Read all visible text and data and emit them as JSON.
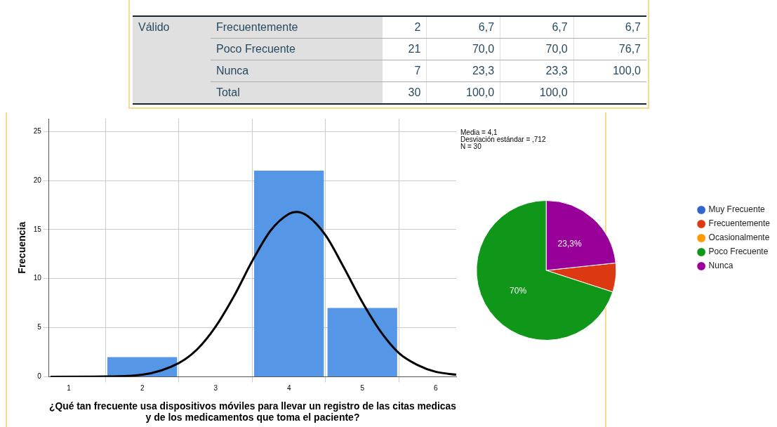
{
  "chart_data": [
    {
      "type": "other",
      "annotations": [
        "Válido"
      ],
      "categories": [
        "Frecuentemente",
        "Poco Frecuente",
        "Nunca",
        "Total"
      ],
      "series": [
        {
          "values": [
            2,
            21,
            7,
            30
          ],
          "value_labels": [
            "2",
            "21",
            "7",
            "30"
          ]
        },
        {
          "values": [
            6.7,
            70,
            23.3,
            100
          ],
          "value_labels": [
            "6,7",
            "70,0",
            "23,3",
            "100,0"
          ]
        },
        {
          "values": [
            6.7,
            70,
            23.3,
            100
          ],
          "value_labels": [
            "6,7",
            "70,0",
            "23,3",
            "100,0"
          ]
        },
        {
          "values": [
            6.7,
            76.7,
            100,
            null
          ],
          "value_labels": [
            "6,7",
            "76,7",
            "100,0",
            null
          ]
        }
      ]
    },
    {
      "type": "histogram",
      "xlabel": "¿Qué tan frecuente usa dispositivos móviles para llevar un registro de las citas medicas y de los medicamentos que toma el paciente?",
      "ylabel": "Frecuencia",
      "bins": [
        1.5,
        2.5,
        3.5,
        4.5,
        5.5
      ],
      "values": [
        2,
        0,
        21,
        7
      ],
      "color": "#5596e6",
      "series": [
        {
          "type": "line",
          "color": "#000000",
          "x": [
            0.75,
            1.5,
            2,
            2.5,
            2.75,
            3,
            3.25,
            3.5,
            3.75,
            4,
            4.1,
            4.25,
            4.5,
            4.75,
            5,
            5.25,
            5.5,
            5.75,
            6,
            6.28
          ],
          "values": [
            0,
            0.02,
            0.2,
            1.4,
            2.8,
            5.1,
            8.2,
            11.8,
            14.9,
            16.6,
            16.8,
            16.4,
            14.4,
            11.1,
            7.6,
            4.6,
            2.4,
            1.2,
            0.5,
            0.2
          ]
        }
      ],
      "xlim": [
        0.73,
        6.28
      ],
      "xticks": [
        1,
        2,
        3,
        4,
        5,
        6
      ],
      "ylim": [
        0,
        26.3
      ],
      "yticks": [
        0,
        5,
        10,
        15,
        20,
        25
      ],
      "grid": true,
      "legend": false,
      "annotations": [
        "Media = 4,1",
        "Desviación estándar = ,712",
        "N = 30"
      ]
    },
    {
      "type": "pie",
      "categories": [
        "Muy Frecuente",
        "Frecuentemente",
        "Ocasionalmente",
        "Poco Frecuente",
        "Nunca"
      ],
      "values": [
        0,
        6.7,
        0,
        70,
        23.3
      ],
      "colors": [
        "#3366cc",
        "#dc3912",
        "#ff9900",
        "#109618",
        "#990099"
      ],
      "value_labels": [
        null,
        null,
        null,
        "70%",
        "23,3%"
      ],
      "legend": "right"
    }
  ]
}
